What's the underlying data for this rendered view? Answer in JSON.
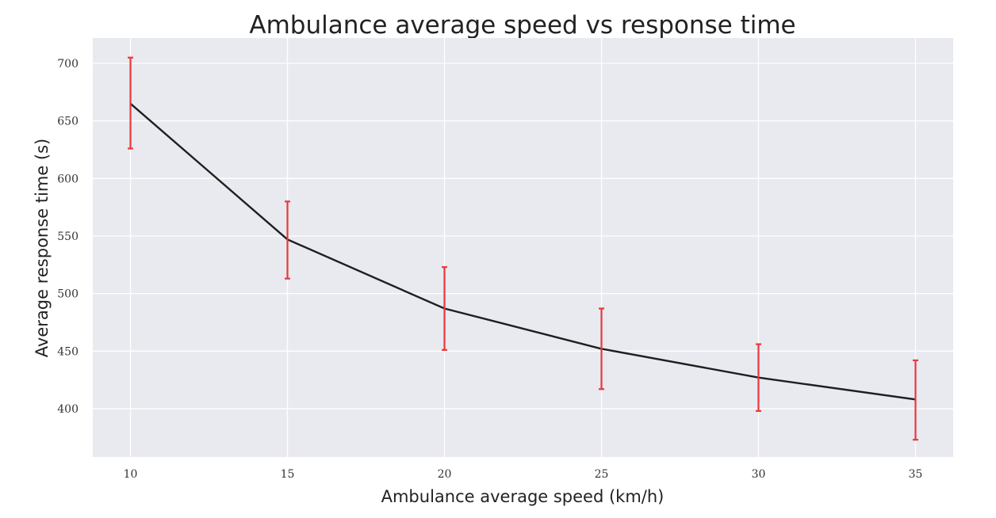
{
  "chart_data": {
    "type": "line",
    "title": "Ambulance average speed vs response time",
    "xlabel": "Ambulance average speed (km/h)",
    "ylabel": "Average response time (s)",
    "x": [
      10,
      15,
      20,
      25,
      30,
      35
    ],
    "series": [
      {
        "values": [
          665,
          547,
          487,
          452,
          427,
          408
        ],
        "error_low": [
          626,
          513,
          451,
          417,
          398,
          373
        ],
        "error_high": [
          705,
          580,
          523,
          487,
          456,
          442
        ],
        "color": "#1f1f1f",
        "error_color": "#e8393a"
      }
    ],
    "xticks": [
      10,
      15,
      20,
      25,
      30,
      35
    ],
    "yticks": [
      400,
      450,
      500,
      550,
      600,
      650,
      700
    ],
    "xlim": [
      8.8,
      36.2
    ],
    "ylim": [
      358,
      722
    ],
    "grid": true,
    "background_color": "#e9e9f0"
  }
}
